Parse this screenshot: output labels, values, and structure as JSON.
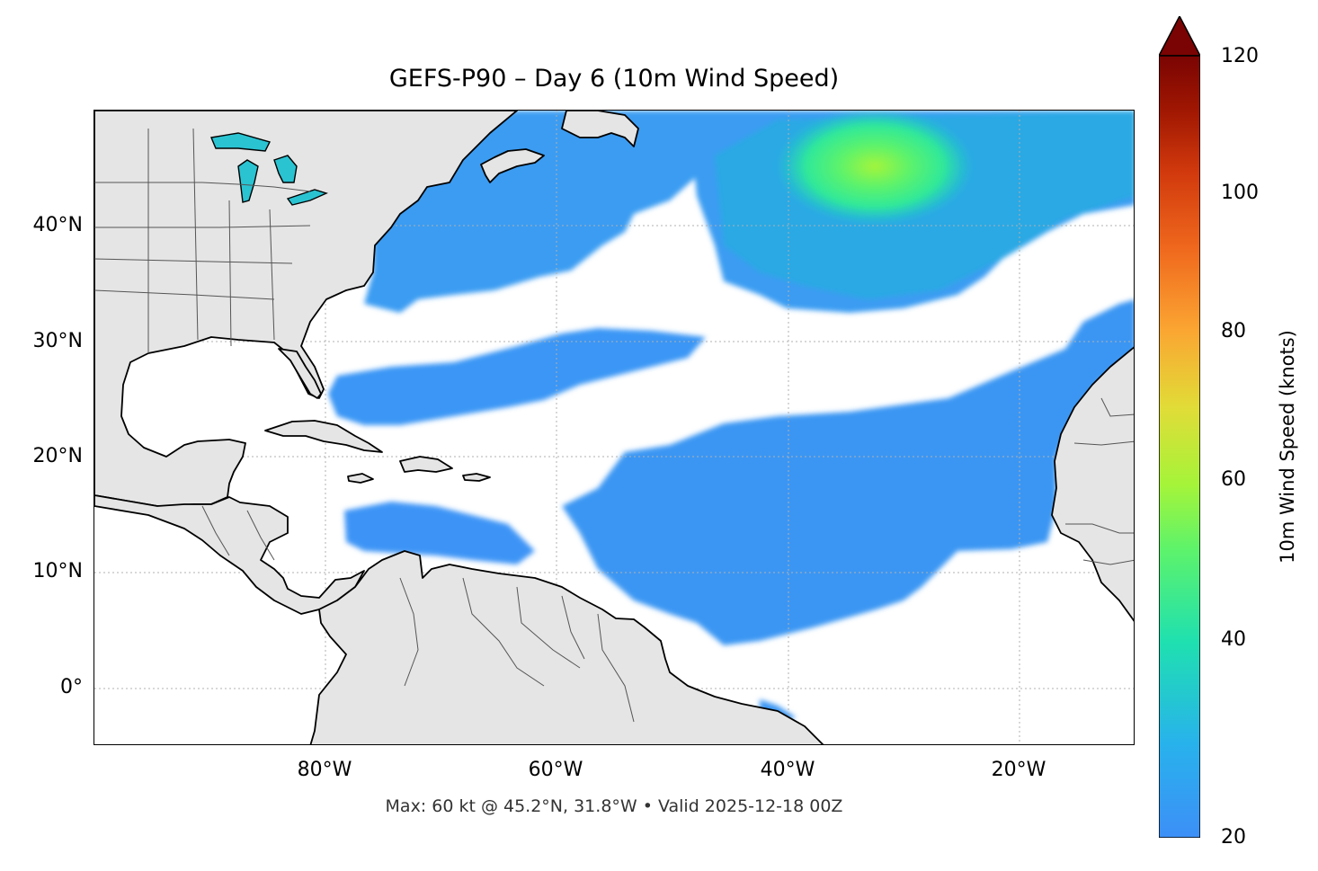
{
  "title": "GEFS-P90 – Day 6 (10m Wind Speed)",
  "footer": "Max: 60 kt @ 45.2°N, 31.8°W • Valid 2025-12-18 00Z",
  "map": {
    "lat_labels": [
      "40°N",
      "30°N",
      "20°N",
      "10°N",
      "0°"
    ],
    "lon_labels": [
      "80°W",
      "60°W",
      "40°W",
      "20°W"
    ],
    "land_color": "#e5e5e5",
    "coast_color": "#000000",
    "border_color": "#555555",
    "grid_color": "#b0b0b0",
    "max_marker": {
      "value_kt": 60,
      "lat": 45.2,
      "lon": -31.8
    }
  },
  "colorbar": {
    "label": "10m Wind Speed (knots)",
    "ticks": [
      "120",
      "100",
      "80",
      "60",
      "40",
      "20"
    ],
    "range": [
      20,
      120
    ],
    "colormap": "turbo",
    "extend": "max"
  }
}
